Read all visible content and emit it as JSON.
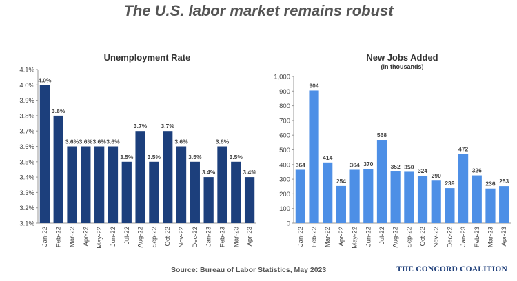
{
  "title": "The U.S. labor market remains robust",
  "source": "Source: Bureau of Labor Statistics, May 2023",
  "brand": "The Concord Coalition",
  "chart_data": [
    {
      "type": "bar",
      "title": "Unemployment Rate",
      "subtitle": "",
      "categories": [
        "Jan-22",
        "Feb-22",
        "Mar-22",
        "Apr-22",
        "May-22",
        "Jun-22",
        "Jul-22",
        "Aug-22",
        "Sep-22",
        "Oct-22",
        "Nov-22",
        "Dec-22",
        "Jan-23",
        "Feb-23",
        "Mar-23",
        "Apr-23"
      ],
      "values": [
        4.0,
        3.8,
        3.6,
        3.6,
        3.6,
        3.6,
        3.5,
        3.7,
        3.5,
        3.7,
        3.6,
        3.5,
        3.4,
        3.6,
        3.5,
        3.4
      ],
      "ylim": [
        3.1,
        4.1
      ],
      "yticks": [
        "3.1%",
        "3.2%",
        "3.3%",
        "3.4%",
        "3.5%",
        "3.6%",
        "3.7%",
        "3.8%",
        "3.9%",
        "4.0%",
        "4.1%"
      ],
      "value_suffix": "%",
      "decimals": 1,
      "grid": false,
      "color": "#1c3f7c"
    },
    {
      "type": "bar",
      "title": "New Jobs Added",
      "subtitle": "(in thousands)",
      "categories": [
        "Jan-22",
        "Feb-22",
        "Mar-22",
        "Apr-22",
        "May-22",
        "Jun-22",
        "Jul-22",
        "Aug-22",
        "Sep-22",
        "Oct-22",
        "Nov-22",
        "Dec-22",
        "Jan-23",
        "Feb-23",
        "Mar-23",
        "Apr-23"
      ],
      "values": [
        364,
        904,
        414,
        254,
        364,
        370,
        568,
        352,
        350,
        324,
        290,
        239,
        472,
        326,
        236,
        253
      ],
      "ylim": [
        0,
        1000
      ],
      "yticks": [
        "0",
        "100",
        "200",
        "300",
        "400",
        "500",
        "600",
        "700",
        "800",
        "900",
        "1,000"
      ],
      "value_suffix": "",
      "decimals": 0,
      "grid": false,
      "color": "#4d8fe6"
    }
  ]
}
